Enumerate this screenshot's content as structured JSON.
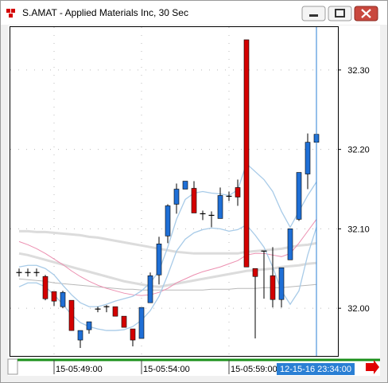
{
  "window_title": "S.AMAT - Applied Materials Inc, 30 Sec",
  "chart_data": {
    "type": "candlestick",
    "categories": [
      null,
      null,
      null,
      null,
      "15-05:49:00",
      null,
      null,
      null,
      null,
      null,
      null,
      null,
      null,
      null,
      "15-05:54:00",
      null,
      null,
      null,
      null,
      null,
      null,
      null,
      null,
      null,
      "15-05:59:00",
      null,
      null,
      null,
      null,
      null,
      null,
      null,
      null,
      null,
      null
    ],
    "open": [
      32.045,
      32.045,
      32.045,
      32.04,
      32.021,
      32.002,
      32.01,
      31.96,
      31.973,
      31.999,
      32.002,
      32.002,
      31.99,
      31.974,
      31.962,
      32.007,
      32.042,
      32.091,
      32.131,
      32.15,
      32.151,
      32.119,
      32.117,
      32.113,
      32.141,
      32.152,
      32.338,
      32.05,
      32.072,
      32.041,
      32.011,
      32.061,
      32.112,
      32.169,
      32.209
    ],
    "high": [
      32.05,
      32.05,
      32.05,
      32.042,
      32.021,
      32.022,
      32.01,
      31.972,
      31.983,
      32.002,
      32.004,
      32.002,
      31.99,
      31.974,
      32.001,
      32.045,
      32.09,
      32.131,
      32.157,
      32.16,
      32.16,
      32.123,
      32.122,
      32.152,
      32.147,
      32.162,
      32.338,
      32.05,
      32.072,
      32.077,
      32.051,
      32.1,
      32.171,
      32.22,
      32.229
    ],
    "low": [
      32.04,
      32.04,
      32.04,
      32.01,
      32.003,
      32.0,
      31.972,
      31.95,
      31.968,
      31.995,
      31.995,
      31.99,
      31.976,
      31.952,
      31.962,
      32.007,
      32.03,
      32.082,
      32.119,
      32.15,
      32.12,
      32.111,
      32.102,
      32.113,
      32.135,
      32.129,
      32.052,
      31.962,
      32.012,
      32.001,
      32.001,
      32.061,
      32.11,
      32.15,
      32.172
    ],
    "close": [
      32.045,
      32.045,
      32.045,
      32.012,
      32.009,
      32.02,
      31.972,
      31.972,
      31.983,
      31.999,
      32.002,
      31.99,
      31.976,
      31.96,
      32.001,
      32.041,
      32.081,
      32.129,
      32.15,
      32.16,
      32.12,
      32.119,
      32.117,
      32.142,
      32.141,
      32.14,
      32.052,
      32.04,
      32.072,
      32.011,
      32.051,
      32.1,
      32.171,
      32.209,
      32.219
    ],
    "up_color": "#1f6fd6",
    "down_color": "#d40000",
    "flat_color": "#000000",
    "overlays": [
      {
        "color": "#dcdcdc",
        "width": 3,
        "values": [
          32.097,
          32.097,
          32.096,
          32.096,
          32.095,
          32.094,
          32.093,
          32.092,
          32.09,
          32.089,
          32.087,
          32.085,
          32.083,
          32.081,
          32.079,
          32.077,
          32.075,
          32.073,
          32.071,
          32.07,
          32.069,
          32.069,
          32.069,
          32.069,
          32.069,
          32.069,
          32.071,
          32.072,
          32.073,
          32.074,
          32.075,
          32.077,
          32.079,
          32.08,
          32.082
        ]
      },
      {
        "color": "#dcdcdc",
        "width": 3,
        "values": [
          32.069,
          32.067,
          32.064,
          32.061,
          32.058,
          32.055,
          32.052,
          32.049,
          32.046,
          32.043,
          32.04,
          32.037,
          32.034,
          32.032,
          32.03,
          32.028,
          32.027,
          32.029,
          32.031,
          32.033,
          32.035,
          32.037,
          32.039,
          32.041,
          32.043,
          32.045,
          32.047,
          32.048,
          32.049,
          32.05,
          32.052,
          32.053,
          32.054,
          32.056,
          32.057
        ]
      },
      {
        "color": "#b8b8b8",
        "width": 1,
        "values": [
          32.037,
          32.036,
          32.035,
          32.034,
          32.032,
          32.031,
          32.03,
          32.029,
          32.028,
          32.027,
          32.026,
          32.025,
          32.024,
          32.024,
          32.023,
          32.023,
          32.023,
          32.023,
          32.023,
          32.023,
          32.023,
          32.023,
          32.024,
          32.024,
          32.024,
          32.025,
          32.025,
          32.025,
          32.026,
          32.026,
          32.026,
          32.027,
          32.028,
          32.029,
          32.03
        ]
      },
      {
        "color": "#ec8fb0",
        "width": 1,
        "values": [
          32.084,
          32.08,
          32.075,
          32.069,
          32.062,
          32.055,
          32.047,
          32.04,
          32.034,
          32.029,
          32.025,
          32.022,
          32.019,
          32.017,
          32.016,
          32.017,
          32.02,
          32.025,
          32.032,
          32.037,
          32.042,
          32.046,
          32.049,
          32.052,
          32.056,
          32.06,
          32.067,
          32.069,
          32.069,
          32.067,
          32.065,
          32.069,
          32.082,
          32.097,
          32.112
        ]
      },
      {
        "color": "#a8cbe8",
        "width": 1.3,
        "values": [
          32.052,
          32.054,
          32.054,
          32.05,
          32.042,
          32.029,
          32.017,
          32.007,
          32.002,
          32.002,
          32.005,
          32.009,
          32.012,
          32.015,
          32.022,
          32.032,
          32.047,
          32.077,
          32.112,
          32.137,
          32.145,
          32.147,
          32.145,
          32.144,
          32.142,
          32.149,
          32.182,
          32.172,
          32.162,
          32.147,
          32.122,
          32.102,
          32.122,
          32.142,
          32.159
        ]
      },
      {
        "color": "#a8cbe8",
        "width": 1.3,
        "values": [
          32.027,
          32.032,
          32.032,
          32.027,
          32.017,
          32.005,
          31.992,
          31.982,
          31.977,
          31.974,
          31.972,
          31.972,
          31.973,
          31.977,
          31.985,
          31.997,
          32.015,
          32.042,
          32.072,
          32.087,
          32.095,
          32.099,
          32.101,
          32.1,
          32.097,
          32.099,
          32.105,
          32.092,
          32.077,
          32.052,
          32.022,
          32.005,
          32.022,
          32.067,
          32.102
        ]
      }
    ],
    "ylim": [
      31.94,
      32.354
    ],
    "yticks": [
      {
        "value": 32.0,
        "label": "32.00"
      },
      {
        "value": 32.1,
        "label": "32.10"
      },
      {
        "value": 32.2,
        "label": "32.20"
      },
      {
        "value": 32.3,
        "label": "32.30"
      }
    ],
    "grid": true,
    "cursor_label": "12-15-16 23:34:00"
  }
}
